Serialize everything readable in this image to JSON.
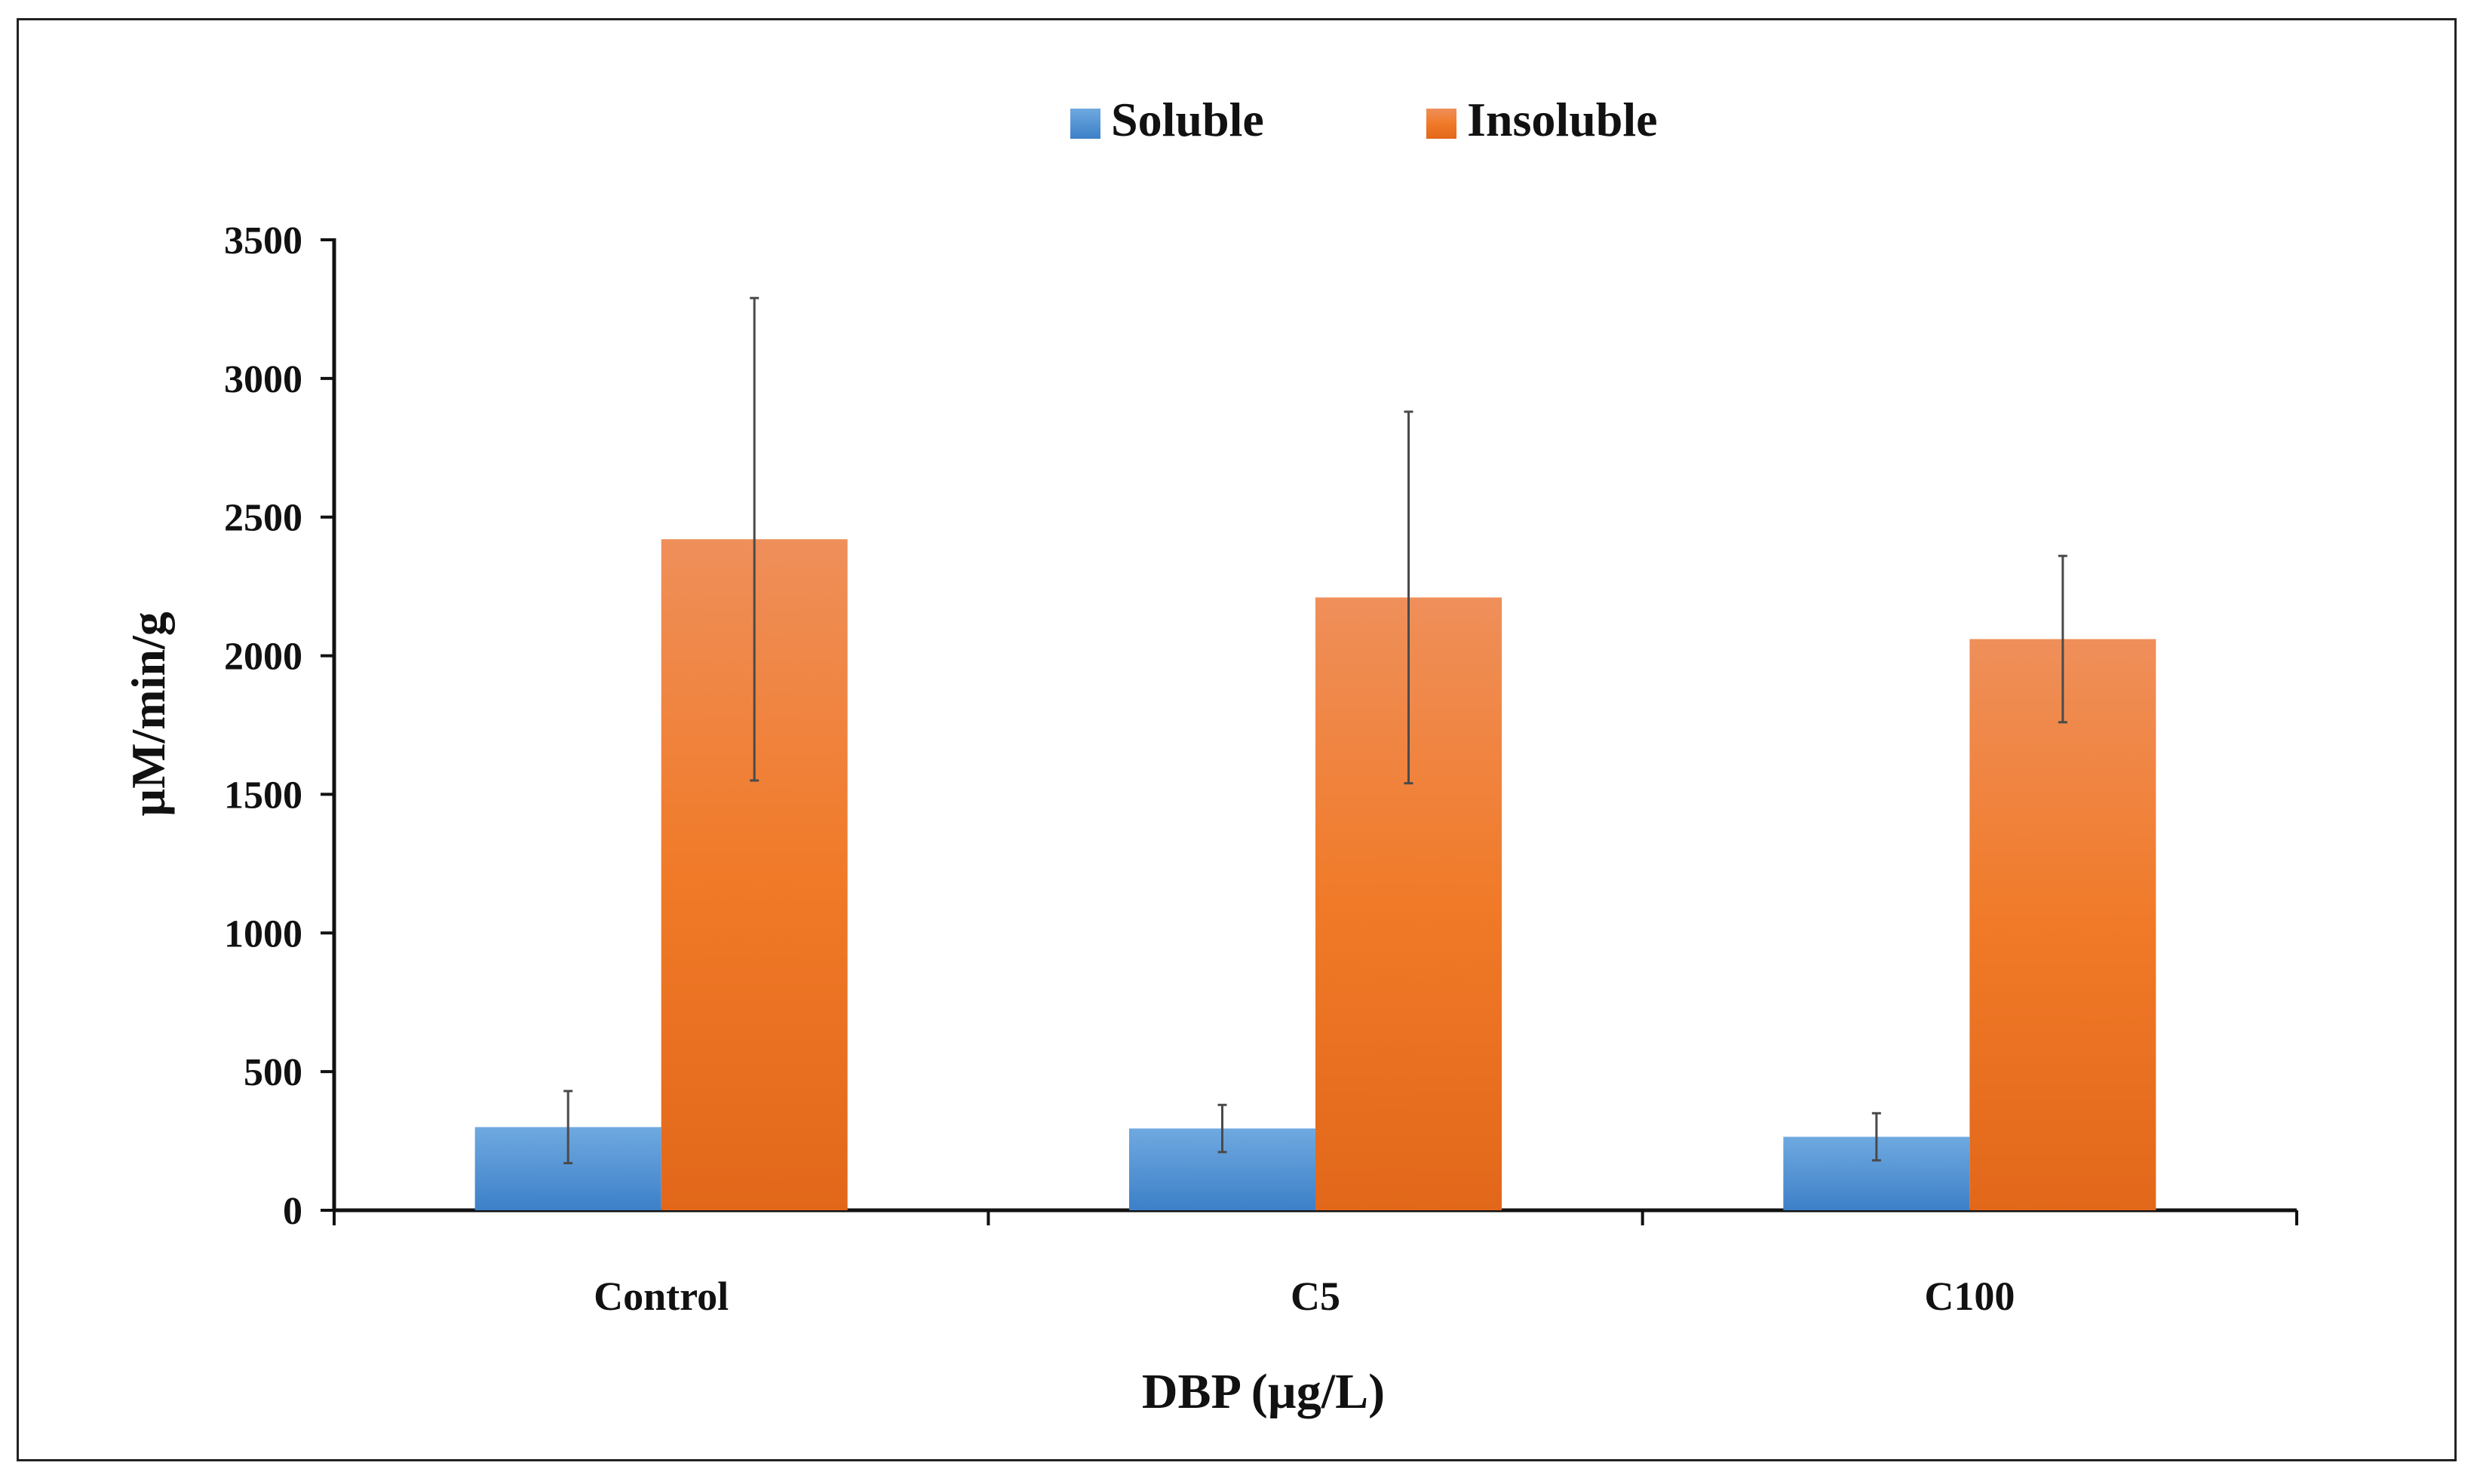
{
  "chart_data": {
    "type": "bar",
    "title": "",
    "xlabel": "DBP (µg/L)",
    "ylabel": "µM/min/g",
    "ylim": [
      0,
      3500
    ],
    "yticks": [
      0,
      500,
      1000,
      1500,
      2000,
      2500,
      3000,
      3500
    ],
    "categories": [
      "Control",
      "C5",
      "C100"
    ],
    "series": [
      {
        "name": "Soluble",
        "color": "#4f8fd1",
        "values": [
          300,
          295,
          265
        ],
        "errors": [
          130,
          85,
          85
        ]
      },
      {
        "name": "Insoluble",
        "color": "#f07a2a",
        "values": [
          2420,
          2210,
          2060
        ],
        "errors": [
          870,
          670,
          300
        ]
      }
    ],
    "legend": "top-center",
    "grid": false
  }
}
